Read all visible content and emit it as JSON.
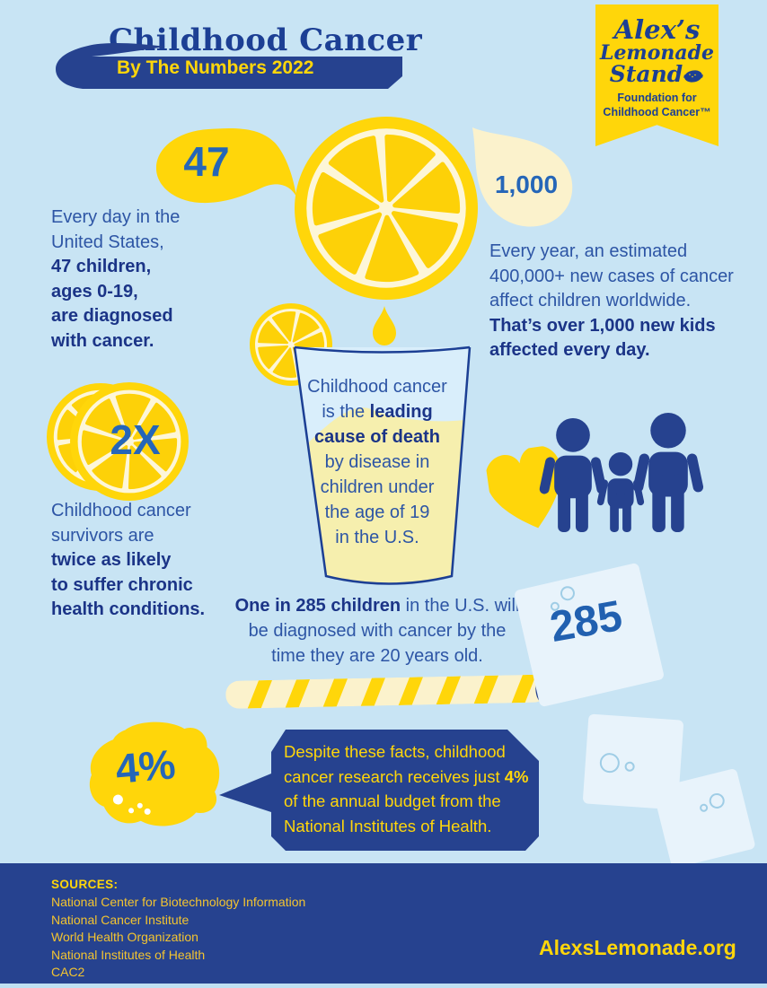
{
  "colors": {
    "background": "#c8e4f4",
    "navy": "#26428f",
    "title_navy": "#1c3f94",
    "text_blue": "#2d55a5",
    "text_bold_navy": "#1b3487",
    "number_blue": "#2566b8",
    "yellow": "#ffd60a",
    "cream": "#fbf2cc",
    "ice": "#e8f3fb"
  },
  "header": {
    "title": "Childhood Cancer",
    "banner_label": "By The Numbers 2022"
  },
  "logo": {
    "name1": "Alex’s",
    "name2": "Lemonade",
    "name3": "Stand",
    "sub1": "Foundation for",
    "sub2": "Childhood Cancer™"
  },
  "stat_47": {
    "number": "47",
    "lines": [
      [
        "Every day in the"
      ],
      [
        "United States,"
      ],
      [
        {
          "t": "47 children,",
          "b": true
        }
      ],
      [
        {
          "t": "ages 0-19,",
          "b": true
        }
      ],
      [
        {
          "t": "are diagnosed",
          "b": true
        }
      ],
      [
        {
          "t": "with cancer.",
          "b": true
        }
      ]
    ]
  },
  "stat_1000": {
    "number": "1,000",
    "lines": [
      [
        "Every year, an estimated"
      ],
      [
        "400,000+ new cases of cancer"
      ],
      [
        "affect children worldwide."
      ],
      [
        {
          "t": "That’s over 1,000 new kids",
          "b": true
        }
      ],
      [
        {
          "t": "affected every day.",
          "b": true
        }
      ]
    ]
  },
  "glass": {
    "lines": [
      [
        "Childhood cancer"
      ],
      [
        "is the ",
        {
          "t": "leading",
          "b": true
        }
      ],
      [
        {
          "t": "cause of death",
          "b": true
        }
      ],
      [
        "by disease in"
      ],
      [
        "children under"
      ],
      [
        "the age of 19"
      ],
      [
        "in the U.S."
      ]
    ]
  },
  "stat_2x": {
    "number": "2X",
    "lines": [
      [
        "Childhood cancer"
      ],
      [
        "survivors are"
      ],
      [
        {
          "t": "twice as likely",
          "b": true
        }
      ],
      [
        {
          "t": "to suffer chronic",
          "b": true
        }
      ],
      [
        {
          "t": "health conditions.",
          "b": true
        }
      ]
    ]
  },
  "stat_285": {
    "number": "285",
    "lines": [
      [
        {
          "t": "One in 285 children",
          "b": true
        },
        " in the U.S. will"
      ],
      [
        "be diagnosed with cancer by the"
      ],
      [
        "time they are 20 years old."
      ]
    ]
  },
  "stat_4": {
    "number": "4%",
    "bubble_lines": [
      [
        "Despite these facts, childhood"
      ],
      [
        "cancer research receives just ",
        {
          "t": "4%",
          "b": true
        }
      ],
      [
        "of the annual budget from the"
      ],
      [
        "National Institutes of Health."
      ]
    ]
  },
  "footer": {
    "sources_label": "SOURCES:",
    "sources": [
      "National Center for Biotechnology Information",
      "National Cancer Institute",
      "World Health Organization",
      "National Institutes of Health",
      "CAC2"
    ],
    "website": "AlexsLemonade.org"
  },
  "icons": {
    "logo_mark": "lemon-icon",
    "heart": "heart-icon",
    "family": "family-figures-icon",
    "lemon_slice": "lemon-slice-icon",
    "drop": "drop-icon",
    "straw": "straw-icon",
    "ice_cube": "ice-cube-icon"
  }
}
